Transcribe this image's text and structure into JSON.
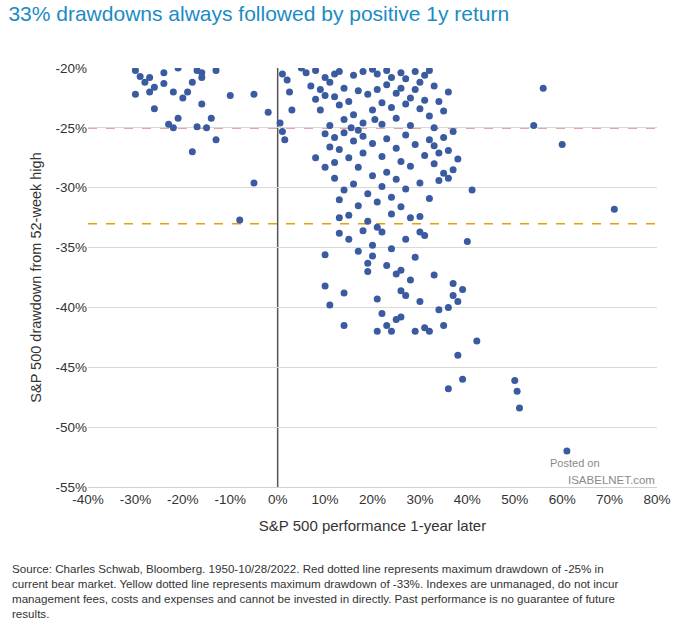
{
  "chart_data": {
    "type": "scatter",
    "title": "33% drawdowns always followed by positive 1y return",
    "x_label": "S&P 500 performance 1-year later",
    "y_label": "S&P 500 drawdown from 52-week high",
    "marker": "circle",
    "color": "#3a5ba0",
    "grid": true,
    "x": [
      -30,
      -30,
      -29,
      -28,
      -27,
      -27,
      -26,
      -26,
      -24,
      -24,
      -23,
      -22,
      -22,
      -21,
      -21,
      -20,
      -19,
      -18,
      -17,
      -17,
      -16,
      -16,
      -15,
      -14,
      -13,
      -13,
      -10,
      -16,
      -18,
      -8,
      -5,
      -5,
      -2,
      0.5,
      1,
      1.5,
      1,
      2,
      2.5,
      5,
      3,
      6,
      7,
      8,
      8,
      9,
      9,
      10,
      10,
      11,
      11,
      12,
      12,
      13,
      13,
      14,
      14,
      15,
      16,
      16,
      17,
      18,
      18,
      19,
      20,
      20,
      21,
      21,
      22,
      22,
      23,
      23,
      24,
      24,
      25,
      25,
      26,
      26,
      27,
      27,
      28,
      28,
      29,
      29,
      30,
      30,
      31,
      31,
      32,
      32,
      33,
      34,
      35,
      33,
      20.5,
      15.5,
      36,
      8,
      10,
      10,
      11,
      12,
      12,
      12,
      13,
      13,
      14,
      14,
      15,
      15,
      16,
      16,
      17,
      17,
      18,
      18,
      19,
      19,
      20,
      20,
      21,
      22,
      22,
      23,
      23,
      24,
      24,
      25,
      25,
      26,
      26,
      27,
      27,
      28,
      28,
      29,
      30,
      30,
      31,
      32,
      32,
      33,
      33,
      34,
      34,
      35,
      35,
      36,
      37,
      38,
      37,
      36,
      21,
      13,
      17,
      10,
      10,
      11,
      13,
      14,
      14,
      15,
      17,
      18,
      19,
      19,
      20,
      20,
      21,
      21,
      22,
      22,
      23,
      23,
      24,
      24,
      25,
      25,
      26,
      26,
      26,
      27,
      27,
      28,
      29,
      29,
      30,
      31,
      31,
      32,
      33,
      34,
      35,
      36,
      36,
      37,
      37,
      38,
      38,
      39,
      39,
      40,
      42,
      30,
      41,
      50,
      50.5,
      51,
      61,
      54,
      56,
      60,
      71
    ],
    "values": [
      -20.2,
      -22.2,
      -20.7,
      -21.2,
      -20.8,
      -22.0,
      -21.6,
      -23.4,
      -20.4,
      -21.3,
      -24.7,
      -22.0,
      -25.0,
      -20.0,
      -24.2,
      -22.5,
      -22.0,
      -27.0,
      -20.2,
      -24.9,
      -20.8,
      -20.4,
      -25.0,
      -24.2,
      -26.0,
      -20.2,
      -22.3,
      -23.0,
      -21.2,
      -32.7,
      -29.6,
      -22.2,
      -23.7,
      -24.6,
      -25.3,
      -26.0,
      -20.5,
      -21.0,
      -22.0,
      -20.0,
      -23.5,
      -20.4,
      -21.5,
      -20.2,
      -22.6,
      -21.8,
      -23.5,
      -20.8,
      -22.3,
      -21.2,
      -24.8,
      -20.5,
      -22.4,
      -23.1,
      -20.3,
      -21.7,
      -24.3,
      -22.8,
      -20.6,
      -23.9,
      -21.9,
      -20.3,
      -24.6,
      -22.2,
      -20.1,
      -23.5,
      -20.5,
      -21.8,
      -22.9,
      -24.7,
      -20.2,
      -21.4,
      -23.3,
      -20.8,
      -22.1,
      -24.2,
      -20.4,
      -21.7,
      -23.0,
      -20.9,
      -22.5,
      -24.8,
      -20.3,
      -21.8,
      -23.4,
      -21.2,
      -20.6,
      -22.7,
      -24.0,
      -20.2,
      -21.5,
      -22.8,
      -23.6,
      -25.0,
      -24.3,
      -25.0,
      -22.0,
      -27.5,
      -25.5,
      -28.3,
      -26.6,
      -25.8,
      -27.9,
      -29.2,
      -26.8,
      -31.0,
      -25.4,
      -30.2,
      -27.5,
      -32.3,
      -26.1,
      -29.7,
      -28.3,
      -31.5,
      -25.7,
      -27.1,
      -30.5,
      -32.8,
      -26.3,
      -29.0,
      -31.2,
      -27.4,
      -29.9,
      -25.9,
      -28.7,
      -30.8,
      -32.2,
      -26.7,
      -29.3,
      -27.8,
      -31.6,
      -25.6,
      -30.1,
      -28.2,
      -32.5,
      -26.4,
      -29.6,
      -32.4,
      -27.3,
      -26.0,
      -30.9,
      -28.0,
      -26.5,
      -27.1,
      -29.4,
      -25.8,
      -28.8,
      -26.9,
      -28.5,
      -27.6,
      -25.3,
      -29.2,
      -33.3,
      -32.5,
      -25.2,
      -35.6,
      -38.2,
      -39.8,
      -33.8,
      -38.8,
      -41.5,
      -34.3,
      -35.3,
      -33.6,
      -37.0,
      -36.3,
      -34.8,
      -35.7,
      -39.3,
      -42.0,
      -33.7,
      -40.5,
      -36.5,
      -41.5,
      -35.1,
      -42.0,
      -37.2,
      -41.0,
      -38.6,
      -40.8,
      -36.9,
      -39.0,
      -34.3,
      -37.7,
      -42.0,
      -35.8,
      -39.5,
      -41.7,
      -34.0,
      -42.0,
      -37.3,
      -40.2,
      -41.5,
      -40.0,
      -46.8,
      -39.0,
      -38.0,
      -44.0,
      -39.5,
      -38.5,
      -46.0,
      -34.5,
      -42.8,
      -33.7,
      -30.2,
      -46.1,
      -47.0,
      -48.4,
      -52.0,
      -24.8,
      -21.7,
      -26.4,
      -31.8
    ],
    "xlim": [
      -40,
      80
    ],
    "xticks": [
      {
        "value": -40,
        "label": "-40%"
      },
      {
        "value": -30,
        "label": "-30%"
      },
      {
        "value": -20,
        "label": "-20%"
      },
      {
        "value": -10,
        "label": "-10%"
      },
      {
        "value": 0,
        "label": "0%"
      },
      {
        "value": 10,
        "label": "10%"
      },
      {
        "value": 20,
        "label": "20%"
      },
      {
        "value": 30,
        "label": "30%"
      },
      {
        "value": 40,
        "label": "40%"
      },
      {
        "value": 50,
        "label": "50%"
      },
      {
        "value": 60,
        "label": "60%"
      },
      {
        "value": 70,
        "label": "70%"
      },
      {
        "value": 80,
        "label": "80%"
      }
    ],
    "ylim": [
      -55,
      -20
    ],
    "yticks": [
      {
        "value": -20,
        "label": "-20%"
      },
      {
        "value": -25,
        "label": "-25%"
      },
      {
        "value": -30,
        "label": "-30%"
      },
      {
        "value": -35,
        "label": "-35%"
      },
      {
        "value": -40,
        "label": "-40%"
      },
      {
        "value": -45,
        "label": "-45%"
      },
      {
        "value": -50,
        "label": "-50%"
      },
      {
        "value": -55,
        "label": "-55%"
      }
    ],
    "hlines": [
      {
        "value": -25,
        "color": "#c0504d",
        "line_style": "dashed"
      },
      {
        "value": -33,
        "color": "#e6a200",
        "line_style": "dashed"
      }
    ],
    "vlines": [
      {
        "value": 0,
        "color": "#555555",
        "line_style": "solid"
      }
    ],
    "watermark": [
      "Posted on",
      "ISABELNET.com"
    ],
    "note": [
      "Source: Charles Schwab, Bloomberg. 1950-10/28/2022. Red dotted line represents maximum drawdown of -25% in",
      "current bear market. Yellow dotted line represents maximum drawdown of -33%. Indexes are unmanaged, do not incur",
      "management fees, costs and expenses and cannot be invested in directly. Past performance is no guarantee of future",
      "results."
    ]
  }
}
